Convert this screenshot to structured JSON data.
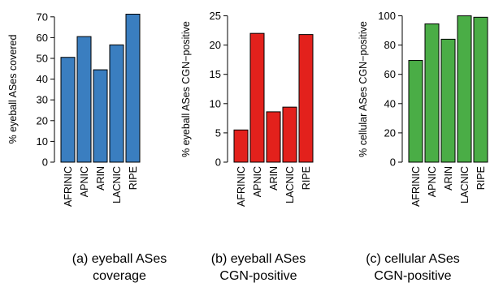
{
  "chart_data": [
    {
      "type": "bar",
      "categories": [
        "AFRINIC",
        "APNIC",
        "ARIN",
        "LACNIC",
        "RIPE"
      ],
      "values": [
        50.5,
        60.5,
        44.5,
        56.5,
        71.3
      ],
      "ylabel": "% eyeball ASes covered",
      "ylim": [
        0,
        75
      ],
      "yticks": [
        0,
        10,
        20,
        30,
        40,
        50,
        60,
        70
      ],
      "color": "#3a7ec0",
      "caption": [
        "(a) eyeball ASes",
        "coverage"
      ]
    },
    {
      "type": "bar",
      "categories": [
        "AFRINIC",
        "APNIC",
        "ARIN",
        "LACNIC",
        "RIPE"
      ],
      "values": [
        5.5,
        22.0,
        8.6,
        9.4,
        21.8
      ],
      "ylabel": "% eyeball ASes CGN−positive",
      "ylim": [
        0,
        25.5
      ],
      "yticks": [
        0,
        5,
        10,
        15,
        20,
        25
      ],
      "color": "#e3211c",
      "caption": [
        "(b) eyeball ASes",
        "CGN-positive"
      ]
    },
    {
      "type": "bar",
      "categories": [
        "AFRINIC",
        "APNIC",
        "ARIN",
        "LACNIC",
        "RIPE"
      ],
      "values": [
        69.5,
        94.5,
        84.0,
        100.0,
        99.0
      ],
      "ylabel": "% cellular ASes CGN−positive",
      "ylim": [
        0,
        101
      ],
      "yticks": [
        0,
        20,
        40,
        60,
        80,
        100
      ],
      "color": "#4aad46",
      "caption": [
        "(c) cellular ASes",
        "CGN-positive"
      ]
    }
  ]
}
